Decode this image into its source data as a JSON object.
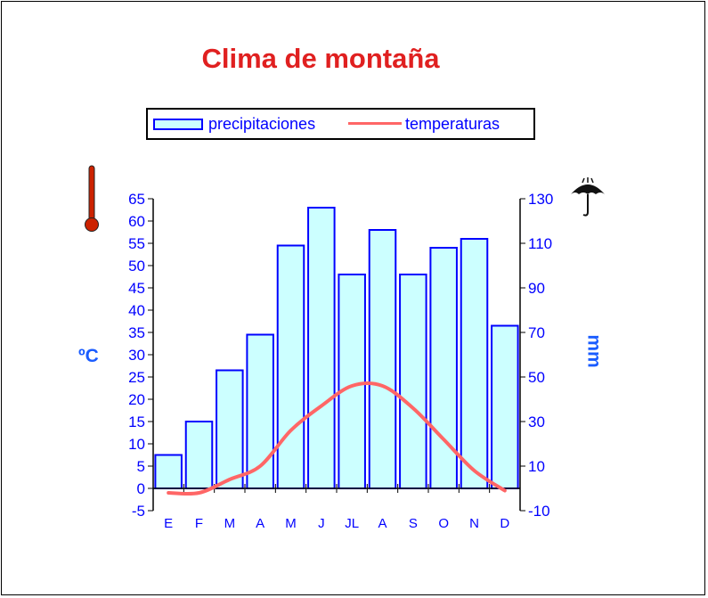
{
  "chart_data": {
    "type": "bar+line",
    "title": "Clima de montaña",
    "categories": [
      "E",
      "F",
      "M",
      "A",
      "M",
      "J",
      "JL",
      "A",
      "S",
      "O",
      "N",
      "D"
    ],
    "series": [
      {
        "name": "precipitaciones",
        "kind": "bar",
        "axis": "right",
        "values": [
          15,
          30,
          53,
          69,
          109,
          126,
          96,
          116,
          96,
          108,
          112,
          73
        ]
      },
      {
        "name": "temperaturas",
        "kind": "line",
        "axis": "left",
        "values": [
          -1,
          -1,
          2,
          5,
          13,
          18.5,
          23,
          23,
          18,
          11,
          4,
          -0.5
        ]
      }
    ],
    "y_left": {
      "label": "ºC",
      "range": [
        -5,
        65
      ],
      "ticks": [
        "65",
        "60",
        "55",
        "50",
        "45",
        "40",
        "35",
        "30",
        "25",
        "20",
        "15",
        "10",
        "5",
        "0",
        "-5"
      ]
    },
    "y_right": {
      "label": "mm",
      "range": [
        -10,
        130
      ],
      "ticks": [
        "130",
        "110",
        "90",
        "70",
        "50",
        "30",
        "10",
        "-10"
      ]
    },
    "legend_placement": "top-center",
    "colors": {
      "title": "#e02020",
      "axis_text": "#0000ff",
      "unit_text": "#1a5cff",
      "bar_fill": "#ccffff",
      "bar_stroke": "#0000ff",
      "line": "#ff6666",
      "thermometer": "#cc2200"
    },
    "icons": [
      "thermometer-icon",
      "umbrella-icon"
    ]
  }
}
